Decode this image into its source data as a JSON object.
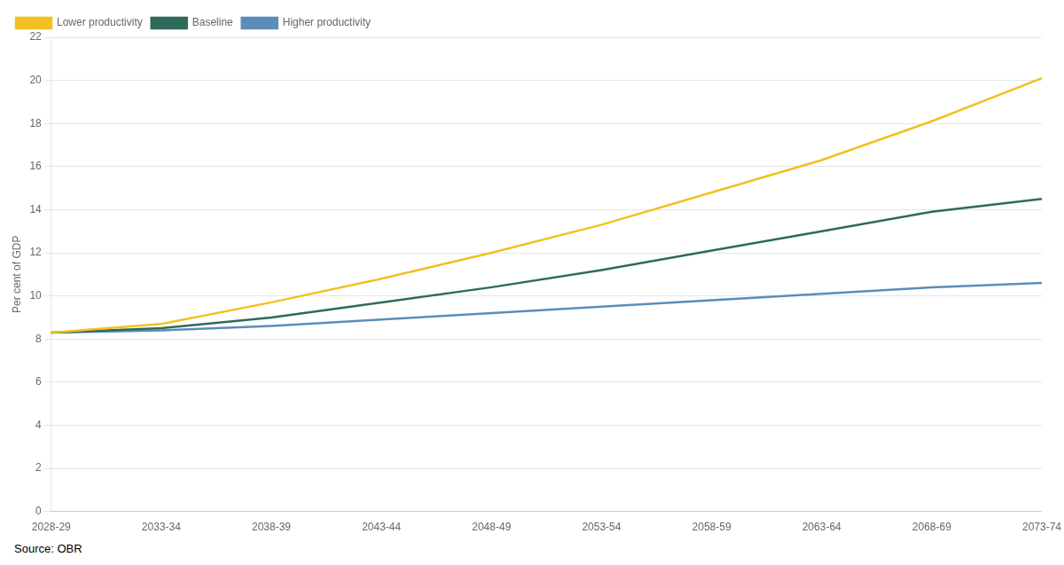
{
  "chart_data": {
    "type": "line",
    "ylabel": "Per cent of GDP",
    "annotations": [
      "Source: OBR"
    ],
    "categories": [
      "2028-29",
      "2033-34",
      "2038-39",
      "2043-44",
      "2048-49",
      "2053-54",
      "2058-59",
      "2063-64",
      "2068-69",
      "2073-74"
    ],
    "series": [
      {
        "name": "Lower productivity",
        "color": "#F2C021",
        "values": [
          8.3,
          8.7,
          9.7,
          10.8,
          12.0,
          13.3,
          14.8,
          16.3,
          18.1,
          20.1
        ]
      },
      {
        "name": "Baseline",
        "color": "#2E6B5A",
        "values": [
          8.3,
          8.5,
          9.0,
          9.7,
          10.4,
          11.2,
          12.1,
          13.0,
          13.9,
          14.5
        ]
      },
      {
        "name": "Higher productivity",
        "color": "#5B8DB8",
        "values": [
          8.3,
          8.4,
          8.6,
          8.9,
          9.2,
          9.5,
          9.8,
          10.1,
          10.4,
          10.6
        ]
      }
    ],
    "ylim": [
      0,
      22
    ],
    "yticks": [
      0,
      2,
      4,
      6,
      8,
      10,
      12,
      14,
      16,
      18,
      20,
      22
    ],
    "grid": true,
    "legend": "upper left"
  }
}
